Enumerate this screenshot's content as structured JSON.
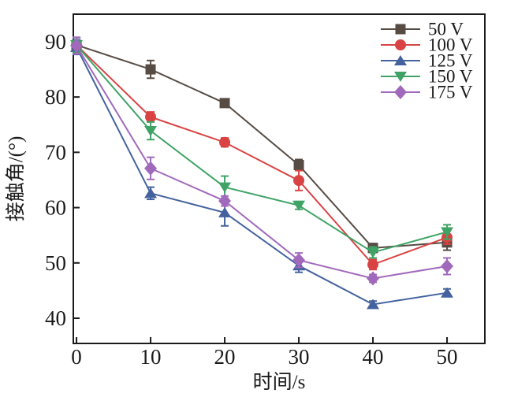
{
  "figure": {
    "background": "#ffffff",
    "axis_color": "#1a1a1a"
  },
  "chart_data": {
    "type": "line",
    "title": "",
    "xlabel": "时间/s",
    "ylabel": "接触角/(°)",
    "x": [
      0,
      10,
      20,
      30,
      40,
      50
    ],
    "xticks": [
      0,
      10,
      20,
      30,
      40,
      50
    ],
    "yticks": [
      40,
      50,
      60,
      70,
      80,
      90
    ],
    "xlim": [
      -0.43,
      55.1
    ],
    "ylim": [
      35.44,
      94.98
    ],
    "grid": false,
    "legend_position": "top-right",
    "error_bars": true,
    "series": [
      {
        "name": "50 V",
        "marker": "square",
        "color": "#564c44",
        "values": [
          89.4,
          85.0,
          78.9,
          67.7,
          52.7,
          53.7
        ],
        "errors": [
          1.3,
          1.6,
          0.6,
          1.0,
          0.8,
          1.4
        ]
      },
      {
        "name": "100 V",
        "marker": "circle",
        "color": "#d94343",
        "values": [
          89.4,
          76.4,
          71.8,
          64.9,
          49.7,
          54.6
        ],
        "errors": [
          1.3,
          0.9,
          0.8,
          1.8,
          0.9,
          1.2
        ]
      },
      {
        "name": "125 V",
        "marker": "triangle-up",
        "color": "#44639e",
        "values": [
          89.0,
          62.6,
          59.1,
          49.5,
          42.5,
          44.6
        ],
        "errors": [
          1.3,
          1.1,
          2.4,
          1.2,
          0.6,
          0.7
        ]
      },
      {
        "name": "150 V",
        "marker": "triangle-down",
        "color": "#3fa366",
        "values": [
          89.4,
          73.9,
          63.7,
          60.4,
          51.9,
          55.6
        ],
        "errors": [
          1.3,
          1.6,
          2.0,
          0.7,
          1.0,
          1.3
        ]
      },
      {
        "name": "175 V",
        "marker": "diamond",
        "color": "#a169bb",
        "values": [
          89.3,
          67.1,
          61.2,
          50.5,
          47.2,
          49.4
        ],
        "errors": [
          1.5,
          2.0,
          0.9,
          1.3,
          0.7,
          1.5
        ]
      }
    ]
  }
}
